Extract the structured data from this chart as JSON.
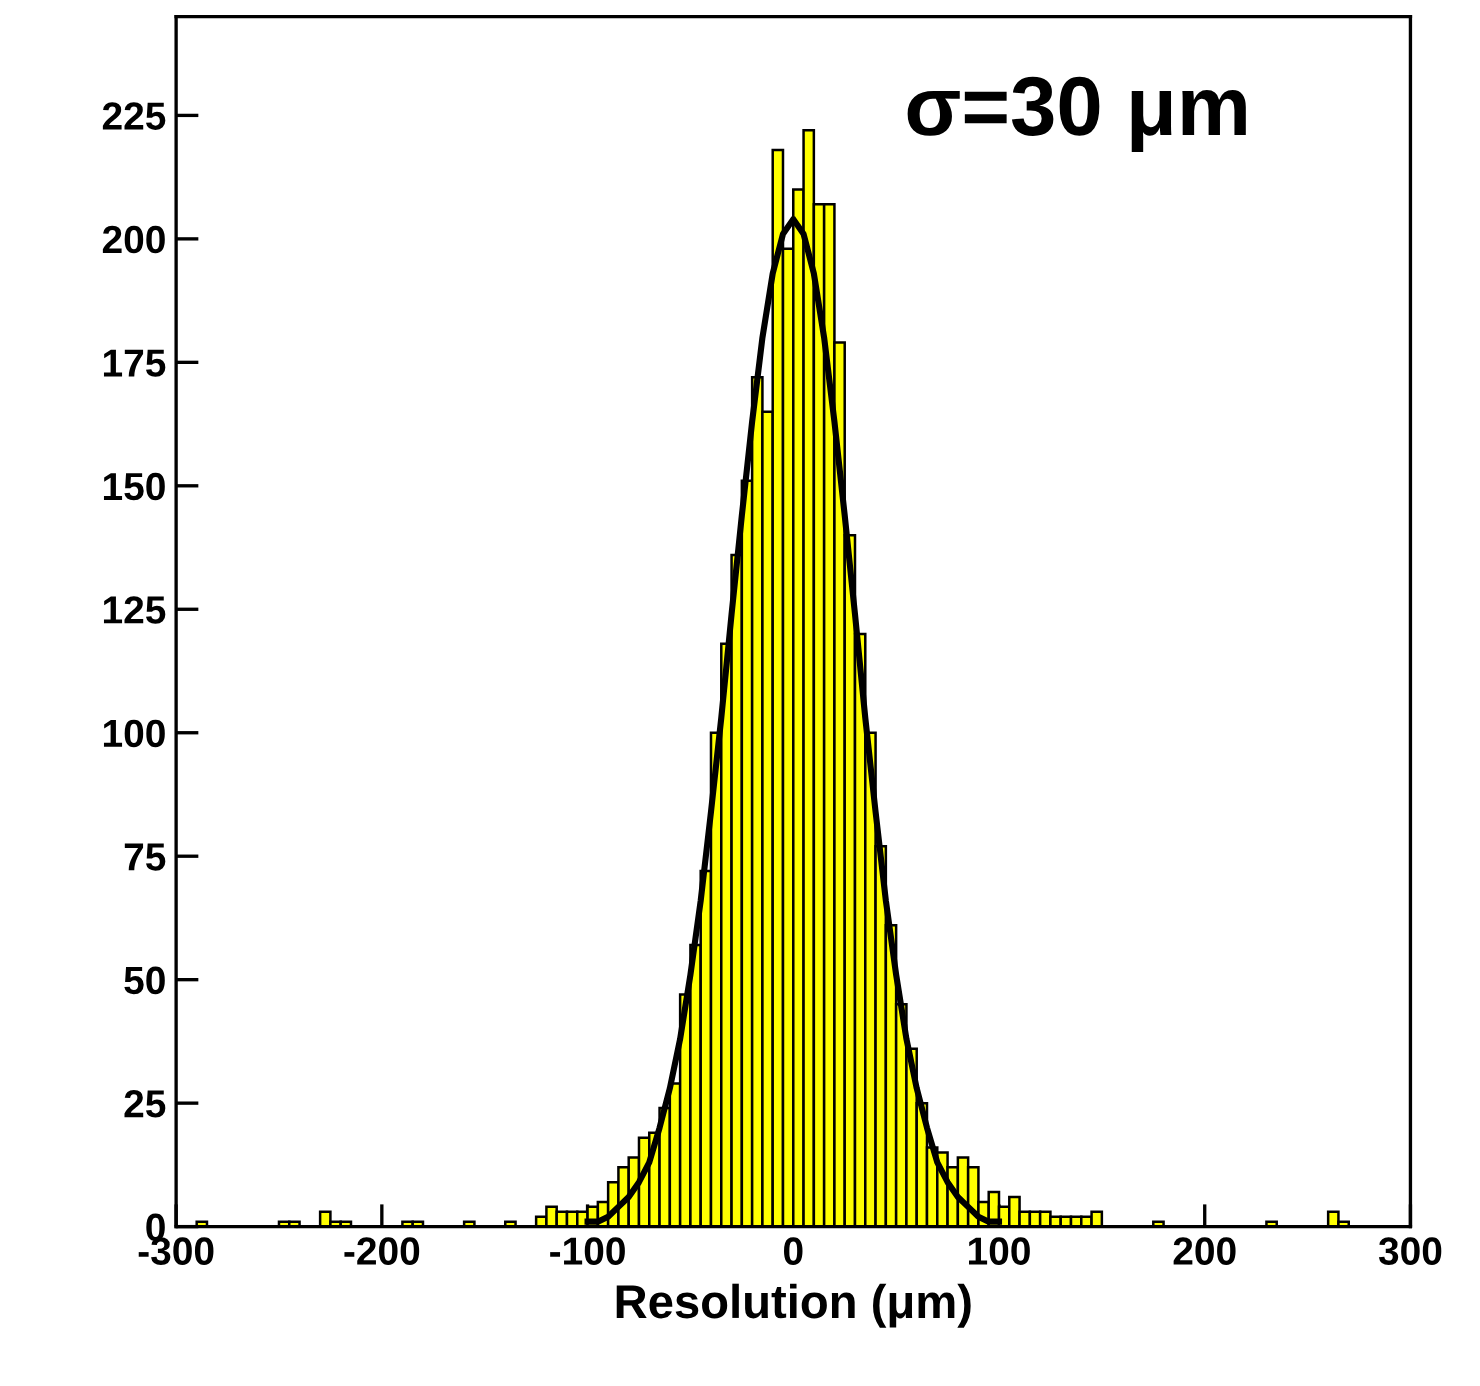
{
  "chart_data": {
    "type": "histogram",
    "xlabel": "Resolution (μm)",
    "annotations": [
      "σ=30 μm"
    ],
    "xlim": [
      -300,
      300
    ],
    "xticks": [
      -300,
      -200,
      -100,
      0,
      100,
      200,
      300
    ],
    "ylim": [
      0,
      245
    ],
    "yticks": [
      0,
      25,
      50,
      75,
      100,
      125,
      150,
      175,
      200,
      225
    ],
    "grid": false,
    "series": [
      {
        "color": "#ffff00",
        "bins": [
          -300,
          -295,
          -290,
          -285,
          -280,
          -275,
          -270,
          -265,
          -260,
          -255,
          -250,
          -245,
          -240,
          -235,
          -230,
          -225,
          -220,
          -215,
          -210,
          -205,
          -200,
          -195,
          -190,
          -185,
          -180,
          -175,
          -170,
          -165,
          -160,
          -155,
          -150,
          -145,
          -140,
          -135,
          -130,
          -125,
          -120,
          -115,
          -110,
          -105,
          -100,
          -95,
          -90,
          -85,
          -80,
          -75,
          -70,
          -65,
          -60,
          -55,
          -50,
          -45,
          -40,
          -35,
          -30,
          -25,
          -20,
          -15,
          -10,
          -5,
          0,
          5,
          10,
          15,
          20,
          25,
          30,
          35,
          40,
          45,
          50,
          55,
          60,
          65,
          70,
          75,
          80,
          85,
          90,
          95,
          100,
          105,
          110,
          115,
          120,
          125,
          130,
          135,
          140,
          145,
          150,
          155,
          160,
          165,
          170,
          175,
          180,
          185,
          190,
          195,
          200,
          205,
          210,
          215,
          220,
          225,
          230,
          235,
          240,
          245,
          250,
          255,
          260,
          265,
          270,
          275,
          280,
          285,
          290,
          295,
          300
        ],
        "values": [
          0,
          0,
          1,
          0,
          0,
          0,
          0,
          0,
          0,
          0,
          1,
          1,
          0,
          0,
          3,
          1,
          1,
          0,
          0,
          0,
          0,
          0,
          1,
          1,
          0,
          0,
          0,
          0,
          1,
          0,
          0,
          0,
          1,
          0,
          0,
          2,
          4,
          3,
          3,
          3,
          4,
          5,
          9,
          12,
          14,
          18,
          19,
          24,
          29,
          47,
          57,
          72,
          100,
          118,
          136,
          151,
          172,
          165,
          218,
          198,
          210,
          222,
          207,
          207,
          179,
          140,
          120,
          100,
          77,
          61,
          45,
          36,
          25,
          16,
          15,
          12,
          14,
          12,
          5,
          7,
          4,
          6,
          3,
          3,
          3,
          2,
          2,
          2,
          2,
          3,
          0,
          0,
          0,
          0,
          0,
          1,
          0,
          0,
          0,
          0,
          0,
          0,
          0,
          0,
          0,
          0,
          1,
          0,
          0,
          0,
          0,
          0,
          3,
          1,
          0,
          0,
          0,
          0,
          0,
          0
        ]
      },
      {
        "type": "line",
        "color": "#000000",
        "x": [
          -100,
          -95,
          -90,
          -85,
          -80,
          -75,
          -70,
          -65,
          -60,
          -55,
          -50,
          -45,
          -40,
          -35,
          -30,
          -25,
          -20,
          -15,
          -10,
          -5,
          0,
          5,
          10,
          15,
          20,
          25,
          30,
          35,
          40,
          45,
          50,
          55,
          60,
          65,
          70,
          75,
          80,
          85,
          90,
          95,
          100
        ],
        "values": [
          1,
          1,
          2,
          4,
          6,
          9,
          13,
          20,
          28,
          38,
          51,
          66,
          84,
          103,
          124,
          144,
          163,
          180,
          193,
          201,
          204,
          201,
          193,
          180,
          163,
          144,
          124,
          103,
          84,
          66,
          51,
          38,
          28,
          20,
          13,
          9,
          6,
          4,
          2,
          1,
          1
        ]
      }
    ]
  }
}
